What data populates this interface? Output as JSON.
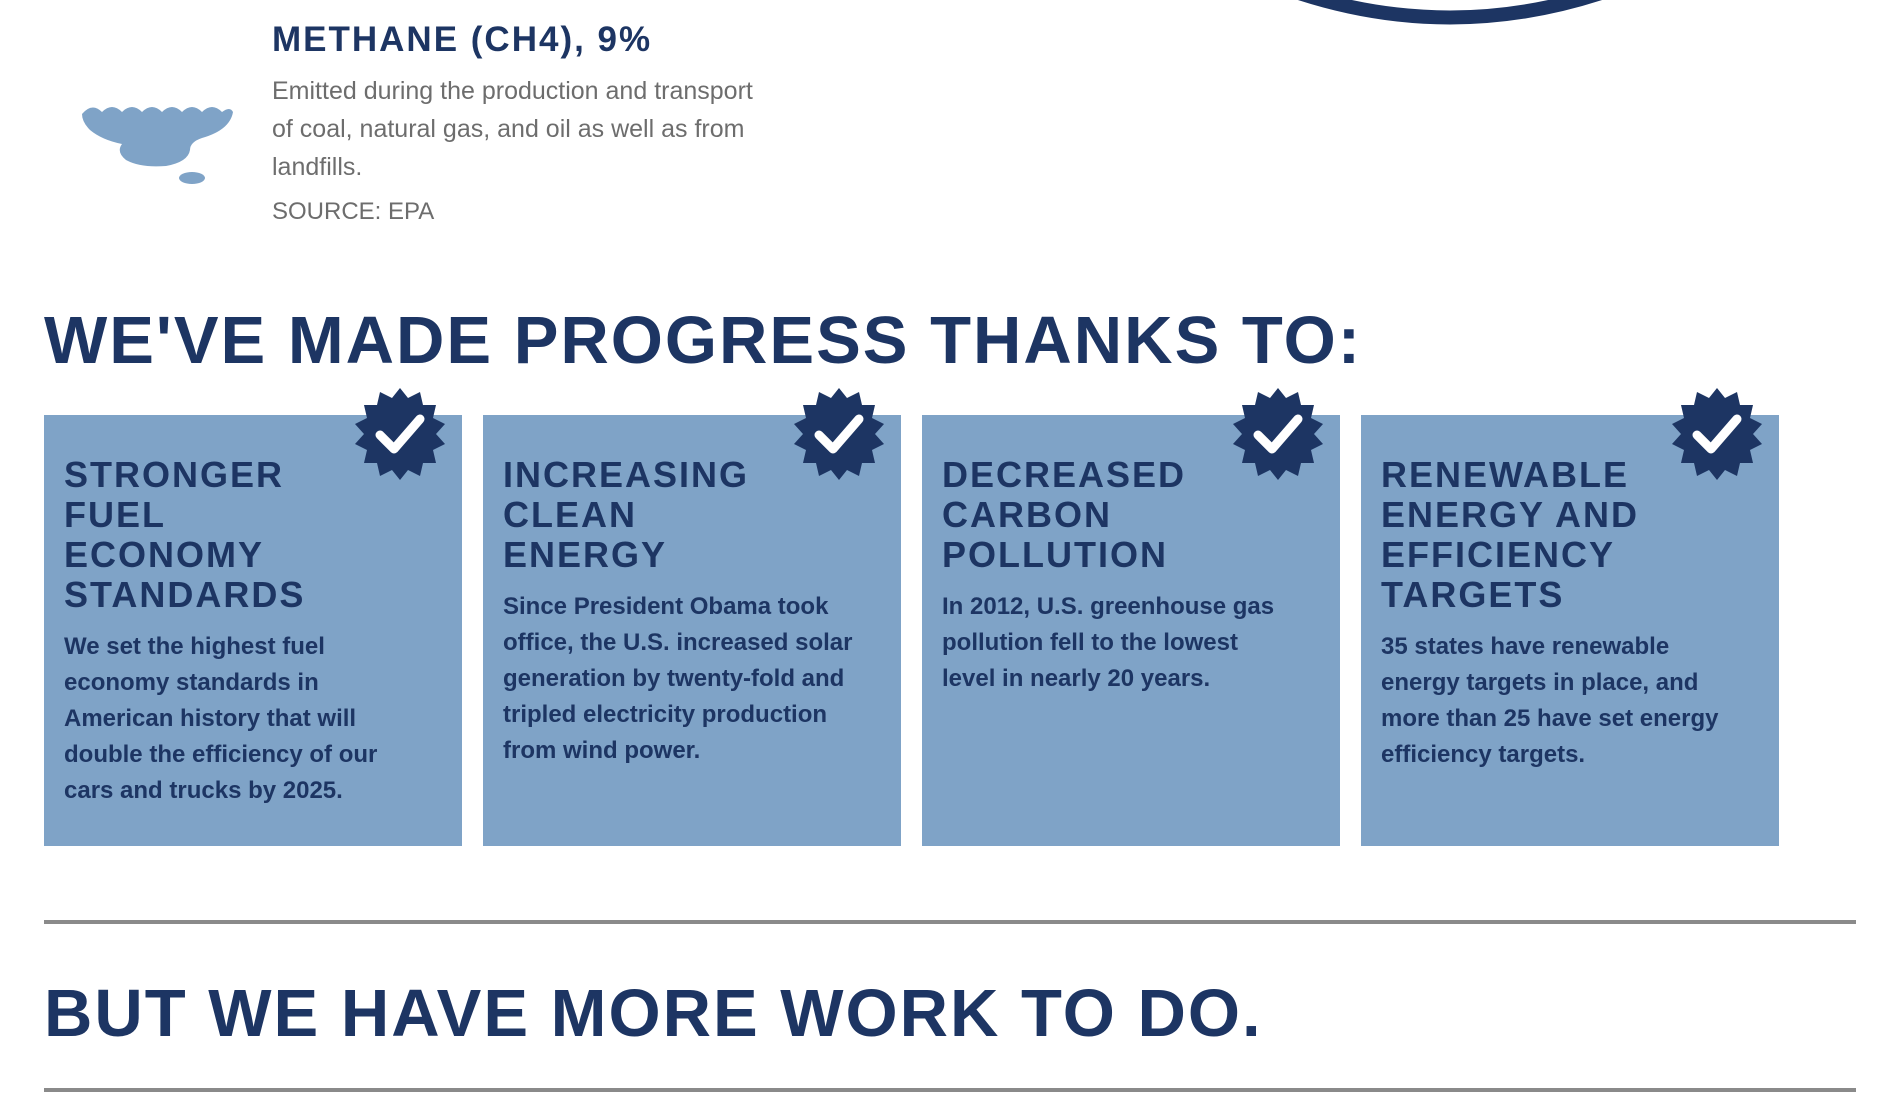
{
  "methane": {
    "icon": "methane-cloud-icon",
    "title": "METHANE (CH4), 9%",
    "description": "Emitted during the production and transport of coal, natural gas, and oil as well as from landfills.",
    "source": "SOURCE: EPA"
  },
  "progress": {
    "heading": "WE'VE MADE PROGRESS THANKS TO:",
    "cards": [
      {
        "title": "STRONGER FUEL ECONOMY STANDARDS",
        "text": "We set the highest fuel economy standards in American history that will double the efficiency of our cars and trucks by 2025.",
        "icon": "checkmark-badge-icon"
      },
      {
        "title": "INCREASING CLEAN ENERGY",
        "text": "Since President Obama took office, the U.S. increased solar generation by twenty-fold and tripled electricity production from wind power.",
        "icon": "checkmark-badge-icon"
      },
      {
        "title": "DECREASED CARBON POLLUTION",
        "text": "In 2012, U.S. greenhouse gas pollution fell to the lowest level in nearly 20 years.",
        "icon": "checkmark-badge-icon"
      },
      {
        "title": "RENEWABLE ENERGY AND EFFICIENCY TARGETS",
        "text": "35 states have renewable energy targets in place, and more than 25 have set energy efficiency targets.",
        "icon": "checkmark-badge-icon"
      }
    ]
  },
  "more_work": {
    "heading": "BUT WE HAVE MORE WORK TO DO."
  },
  "colors": {
    "navy": "#1d3563",
    "card_blue": "#7fa3c7",
    "cloud_blue": "#7fa3c7",
    "gray_text": "#6d6d6d"
  }
}
